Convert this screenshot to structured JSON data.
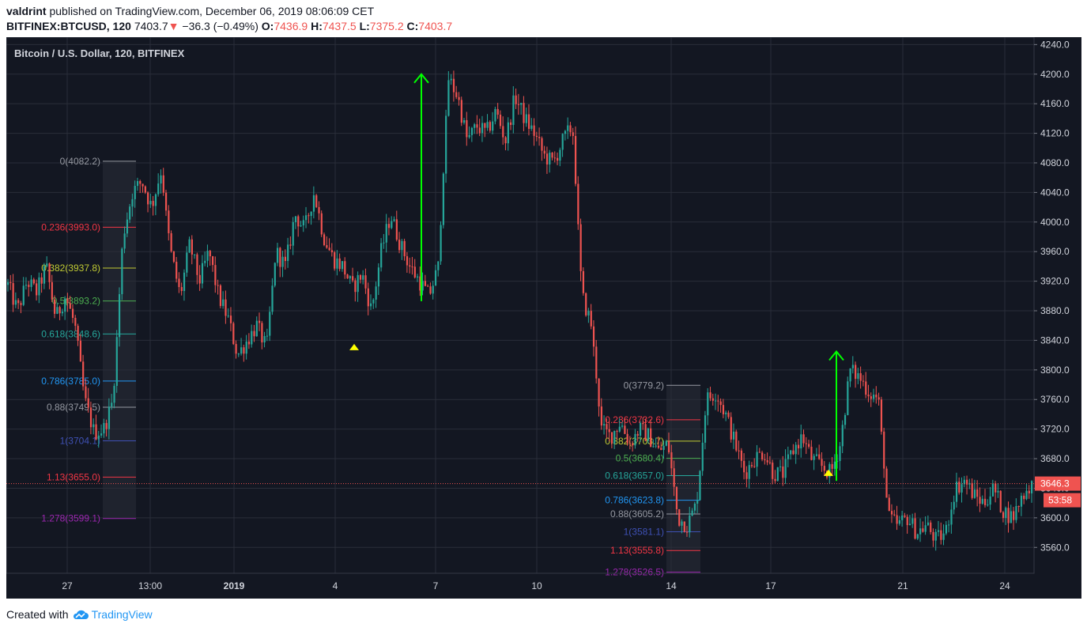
{
  "header": {
    "author": "valdrint",
    "published_text": "published on TradingView.com, December 06, 2019 08:06:09 CET",
    "symbol": "BITFINEX:BTCUSD, 120",
    "last": "7403.7",
    "change_arrow": "▼",
    "change": "−36.3 (−0.49%)",
    "o_label": "O:",
    "o_value": "7436.9",
    "h_label": "H:",
    "h_value": "7437.5",
    "l_label": "L:",
    "l_value": "7375.2",
    "c_label": "C:",
    "c_value": "7403.7"
  },
  "footer": {
    "created_with": "Created with",
    "brand": "TradingView"
  },
  "colors": {
    "background": "#131722",
    "grid": "#2a2e39",
    "up": "#26a69a",
    "down": "#ef5350",
    "arrow": "#00ff00",
    "marker": "#ffff00",
    "axis_text": "#d1d4dc",
    "price_label": "#ef5350"
  },
  "chart_data": {
    "type": "candlestick",
    "title": "Bitcoin / U.S. Dollar, 120, BITFINEX",
    "ylim": [
      3525,
      4250
    ],
    "y_ticks": [
      3560,
      3600,
      3640,
      3680,
      3720,
      3760,
      3800,
      3840,
      3880,
      3920,
      3960,
      4000,
      4040,
      4080,
      4120,
      4160,
      4200,
      4240
    ],
    "y_tick_labels": [
      "3560.0",
      "3600.0",
      "3640.0",
      "3680.0",
      "3720.0",
      "3760.0",
      "3800.0",
      "3840.0",
      "3880.0",
      "3920.0",
      "3960.0",
      "4000.0",
      "4040.0",
      "4080.0",
      "4120.0",
      "4160.0",
      "4200.0",
      "4240.0"
    ],
    "x_ticks": [
      {
        "label": "27",
        "bold": false
      },
      {
        "label": "13:00",
        "bold": false
      },
      {
        "label": "2019",
        "bold": true
      },
      {
        "label": "4",
        "bold": false
      },
      {
        "label": "7",
        "bold": false
      },
      {
        "label": "10",
        "bold": false
      },
      {
        "label": "14",
        "bold": false
      },
      {
        "label": "17",
        "bold": false
      },
      {
        "label": "21",
        "bold": false
      },
      {
        "label": "24",
        "bold": false
      }
    ],
    "current_price": "3646.3",
    "countdown": "53:58",
    "close_path": [
      [
        "27",
        3915
      ],
      [
        "",
        3880
      ],
      [
        "",
        3920
      ],
      [
        "",
        3905
      ],
      [
        "",
        3940
      ],
      [
        "",
        3870
      ],
      [
        "",
        3900
      ],
      [
        "",
        3860
      ],
      [
        "",
        3760
      ],
      [
        "",
        3715
      ],
      [
        "",
        3720
      ],
      [
        "",
        3760
      ],
      [
        "",
        3980
      ],
      [
        "",
        4040
      ],
      [
        "",
        4055
      ],
      [
        "",
        4020
      ],
      [
        "",
        4070
      ],
      [
        "",
        3960
      ],
      [
        "",
        3900
      ],
      [
        "",
        3970
      ],
      [
        "",
        3920
      ],
      [
        "",
        3960
      ],
      [
        "",
        3900
      ],
      [
        "",
        3870
      ],
      [
        "",
        3820
      ],
      [
        "",
        3840
      ],
      [
        "",
        3860
      ],
      [
        "",
        3830
      ],
      [
        "",
        3960
      ],
      [
        "",
        3940
      ],
      [
        "",
        4010
      ],
      [
        "",
        3990
      ],
      [
        "",
        4040
      ],
      [
        "",
        3980
      ],
      [
        "",
        3950
      ],
      [
        "",
        3940
      ],
      [
        "",
        3910
      ],
      [
        "",
        3930
      ],
      [
        "",
        3880
      ],
      [
        "",
        3960
      ],
      [
        "",
        4010
      ],
      [
        "",
        3970
      ],
      [
        "",
        3940
      ],
      [
        "",
        3920
      ],
      [
        "",
        3900
      ],
      [
        "",
        3940
      ],
      [
        "",
        4195
      ],
      [
        "",
        4170
      ],
      [
        "",
        4110
      ],
      [
        "",
        4130
      ],
      [
        "",
        4120
      ],
      [
        "",
        4150
      ],
      [
        "",
        4110
      ],
      [
        "",
        4170
      ],
      [
        "",
        4140
      ],
      [
        "",
        4120
      ],
      [
        "",
        4090
      ],
      [
        "",
        4080
      ],
      [
        "",
        4110
      ],
      [
        "",
        4130
      ],
      [
        "",
        3900
      ],
      [
        "",
        3860
      ],
      [
        "",
        3720
      ],
      [
        "",
        3710
      ],
      [
        "",
        3730
      ],
      [
        "",
        3700
      ],
      [
        "",
        3720
      ],
      [
        "",
        3710
      ],
      [
        "",
        3690
      ],
      [
        "",
        3700
      ],
      [
        "",
        3600
      ],
      [
        "",
        3590
      ],
      [
        "",
        3620
      ],
      [
        "",
        3760
      ],
      [
        "",
        3770
      ],
      [
        "",
        3740
      ],
      [
        "",
        3700
      ],
      [
        "",
        3660
      ],
      [
        "",
        3680
      ],
      [
        "",
        3690
      ],
      [
        "",
        3660
      ],
      [
        "",
        3660
      ],
      [
        "",
        3690
      ],
      [
        "",
        3710
      ],
      [
        "",
        3680
      ],
      [
        "",
        3670
      ],
      [
        "",
        3660
      ],
      [
        "",
        3700
      ],
      [
        "",
        3800
      ],
      [
        "",
        3790
      ],
      [
        "",
        3770
      ],
      [
        "",
        3760
      ],
      [
        "",
        3600
      ],
      [
        "",
        3590
      ],
      [
        "",
        3600
      ],
      [
        "",
        3580
      ],
      [
        "",
        3590
      ],
      [
        "",
        3570
      ],
      [
        "",
        3580
      ],
      [
        "",
        3640
      ],
      [
        "",
        3650
      ],
      [
        "",
        3630
      ],
      [
        "",
        3620
      ],
      [
        "",
        3640
      ],
      [
        "",
        3610
      ],
      [
        "",
        3600
      ],
      [
        "",
        3630
      ],
      [
        "",
        3646
      ]
    ],
    "fib_sets": [
      {
        "levels": [
          {
            "label": "0(4082.2)",
            "value": 4082.2,
            "color": "#9598a1"
          },
          {
            "label": "0.236(3993.0)",
            "value": 3993.0,
            "color": "#f23645"
          },
          {
            "label": "0.382(3937.8)",
            "value": 3937.8,
            "color": "#c0ca33"
          },
          {
            "label": "0.5(3893.2)",
            "value": 3893.2,
            "color": "#4caf50"
          },
          {
            "label": "0.618(3848.6)",
            "value": 3848.6,
            "color": "#26a69a"
          },
          {
            "label": "0.786(3785.0)",
            "value": 3785.0,
            "color": "#2196f3"
          },
          {
            "label": "0.88(3749.5)",
            "value": 3749.5,
            "color": "#9598a1"
          },
          {
            "label": "1(3704.1)",
            "value": 3704.1,
            "color": "#3f51b5"
          },
          {
            "label": "1.13(3655.0)",
            "value": 3655.0,
            "color": "#f23645"
          },
          {
            "label": "1.278(3599.1)",
            "value": 3599.1,
            "color": "#9c27b0"
          }
        ]
      },
      {
        "levels": [
          {
            "label": "0(3779.2)",
            "value": 3779.2,
            "color": "#9598a1"
          },
          {
            "label": "0.236(3732.6)",
            "value": 3732.6,
            "color": "#f23645"
          },
          {
            "label": "0.382(3703.7)",
            "value": 3703.7,
            "color": "#c0ca33"
          },
          {
            "label": "0.5(3680.4)",
            "value": 3680.4,
            "color": "#4caf50"
          },
          {
            "label": "0.618(3657.0)",
            "value": 3657.0,
            "color": "#26a69a"
          },
          {
            "label": "0.786(3623.8)",
            "value": 3623.8,
            "color": "#2196f3"
          },
          {
            "label": "0.88(3605.2)",
            "value": 3605.2,
            "color": "#9598a1"
          },
          {
            "label": "1(3581.1)",
            "value": 3581.1,
            "color": "#3f51b5"
          },
          {
            "label": "1.13(3555.8)",
            "value": 3555.8,
            "color": "#f23645"
          },
          {
            "label": "1.278(3526.5)",
            "value": 3526.5,
            "color": "#9c27b0"
          }
        ]
      }
    ],
    "arrows": [
      {
        "from": 3893,
        "to": 4200
      },
      {
        "from": 3650,
        "to": 3825
      }
    ],
    "markers": [
      {
        "value": 3832
      },
      {
        "value": 3662
      }
    ]
  }
}
